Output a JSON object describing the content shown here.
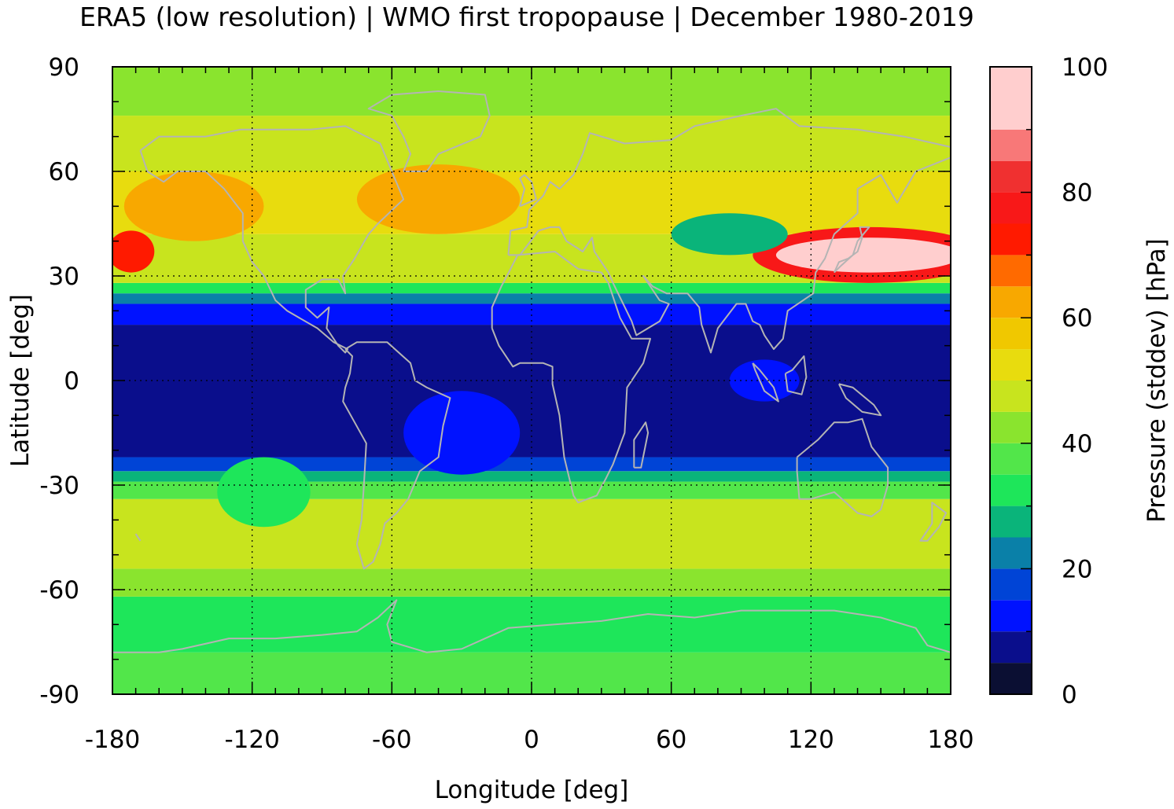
{
  "title": "ERA5 (low resolution) | WMO first tropopause | December 1980-2019",
  "chart_data": {
    "type": "heatmap",
    "title": "ERA5 (low resolution) | WMO first tropopause | December 1980-2019",
    "xlabel": "Longitude [deg]",
    "ylabel": "Latitude [deg]",
    "xlim": [
      -180,
      180
    ],
    "ylim": [
      -90,
      90
    ],
    "x_ticks": [
      -180,
      -120,
      -60,
      0,
      60,
      120,
      180
    ],
    "y_ticks": [
      90,
      60,
      30,
      0,
      -30,
      -60,
      -90
    ],
    "x_tick_labels": [
      "-180",
      "-120",
      "-60",
      "0",
      "60",
      "120",
      "180"
    ],
    "y_tick_labels": [
      "90",
      "60",
      "30",
      "0",
      "-30",
      "-60",
      "-90"
    ],
    "grid": true,
    "colorbar": {
      "label": "Pressure (stddev) [hPa]",
      "range": [
        0,
        100
      ],
      "ticks": [
        0,
        20,
        40,
        60,
        80,
        100
      ],
      "tick_labels": [
        "0",
        "20",
        "40",
        "60",
        "80",
        "100"
      ],
      "levels": [
        {
          "from": 0,
          "to": 5,
          "color": "#0b0f33"
        },
        {
          "from": 5,
          "to": 10,
          "color": "#0a0e8c"
        },
        {
          "from": 10,
          "to": 15,
          "color": "#0012ff"
        },
        {
          "from": 15,
          "to": 20,
          "color": "#0044d6"
        },
        {
          "from": 20,
          "to": 25,
          "color": "#0a80a8"
        },
        {
          "from": 25,
          "to": 30,
          "color": "#0ab47a"
        },
        {
          "from": 30,
          "to": 35,
          "color": "#1ee65a"
        },
        {
          "from": 35,
          "to": 40,
          "color": "#52e64a"
        },
        {
          "from": 40,
          "to": 45,
          "color": "#8ae42e"
        },
        {
          "from": 45,
          "to": 50,
          "color": "#c8e41e"
        },
        {
          "from": 50,
          "to": 55,
          "color": "#e8dc0e"
        },
        {
          "from": 55,
          "to": 60,
          "color": "#f0c800"
        },
        {
          "from": 60,
          "to": 65,
          "color": "#f8a800"
        },
        {
          "from": 65,
          "to": 70,
          "color": "#ff6a00"
        },
        {
          "from": 70,
          "to": 75,
          "color": "#ff1a00"
        },
        {
          "from": 75,
          "to": 80,
          "color": "#f81818"
        },
        {
          "from": 80,
          "to": 85,
          "color": "#f03030"
        },
        {
          "from": 85,
          "to": 90,
          "color": "#f87878"
        },
        {
          "from": 90,
          "to": 100,
          "color": "#ffcece"
        }
      ]
    },
    "field_bands": [
      {
        "lat_from": -90,
        "lat_to": -78,
        "value": 37
      },
      {
        "lat_from": -78,
        "lat_to": -62,
        "value": 33
      },
      {
        "lat_from": -62,
        "lat_to": -54,
        "value": 42
      },
      {
        "lat_from": -54,
        "lat_to": -34,
        "value": 47
      },
      {
        "lat_from": -34,
        "lat_to": -29,
        "value": 38
      },
      {
        "lat_from": -29,
        "lat_to": -26,
        "value": 27
      },
      {
        "lat_from": -26,
        "lat_to": -22,
        "value": 17
      },
      {
        "lat_from": -22,
        "lat_to": 16,
        "value": 7
      },
      {
        "lat_from": 16,
        "lat_to": 22,
        "value": 13
      },
      {
        "lat_from": 22,
        "lat_to": 25,
        "value": 22
      },
      {
        "lat_from": 25,
        "lat_to": 28,
        "value": 32
      },
      {
        "lat_from": 28,
        "lat_to": 42,
        "value": 47
      },
      {
        "lat_from": 42,
        "lat_to": 60,
        "value": 53
      },
      {
        "lat_from": 60,
        "lat_to": 76,
        "value": 47
      },
      {
        "lat_from": 76,
        "lat_to": 90,
        "value": 41
      }
    ],
    "field_features": [
      {
        "lon": 145,
        "lat": 36,
        "rx": 40,
        "ry": 5,
        "value": 92
      },
      {
        "lon": 145,
        "lat": 36,
        "rx": 50,
        "ry": 8,
        "value": 78
      },
      {
        "lon": -172,
        "lat": 37,
        "rx": 10,
        "ry": 6,
        "value": 72
      },
      {
        "lon": -40,
        "lat": 52,
        "rx": 35,
        "ry": 10,
        "value": 62
      },
      {
        "lon": -145,
        "lat": 50,
        "rx": 30,
        "ry": 10,
        "value": 60
      },
      {
        "lon": 85,
        "lat": 42,
        "rx": 25,
        "ry": 6,
        "value": 27
      },
      {
        "lon": -115,
        "lat": -32,
        "rx": 20,
        "ry": 10,
        "value": 30
      },
      {
        "lon": 100,
        "lat": 0,
        "rx": 15,
        "ry": 6,
        "value": 13
      },
      {
        "lon": -30,
        "lat": -15,
        "rx": 25,
        "ry": 12,
        "value": 13
      }
    ]
  }
}
